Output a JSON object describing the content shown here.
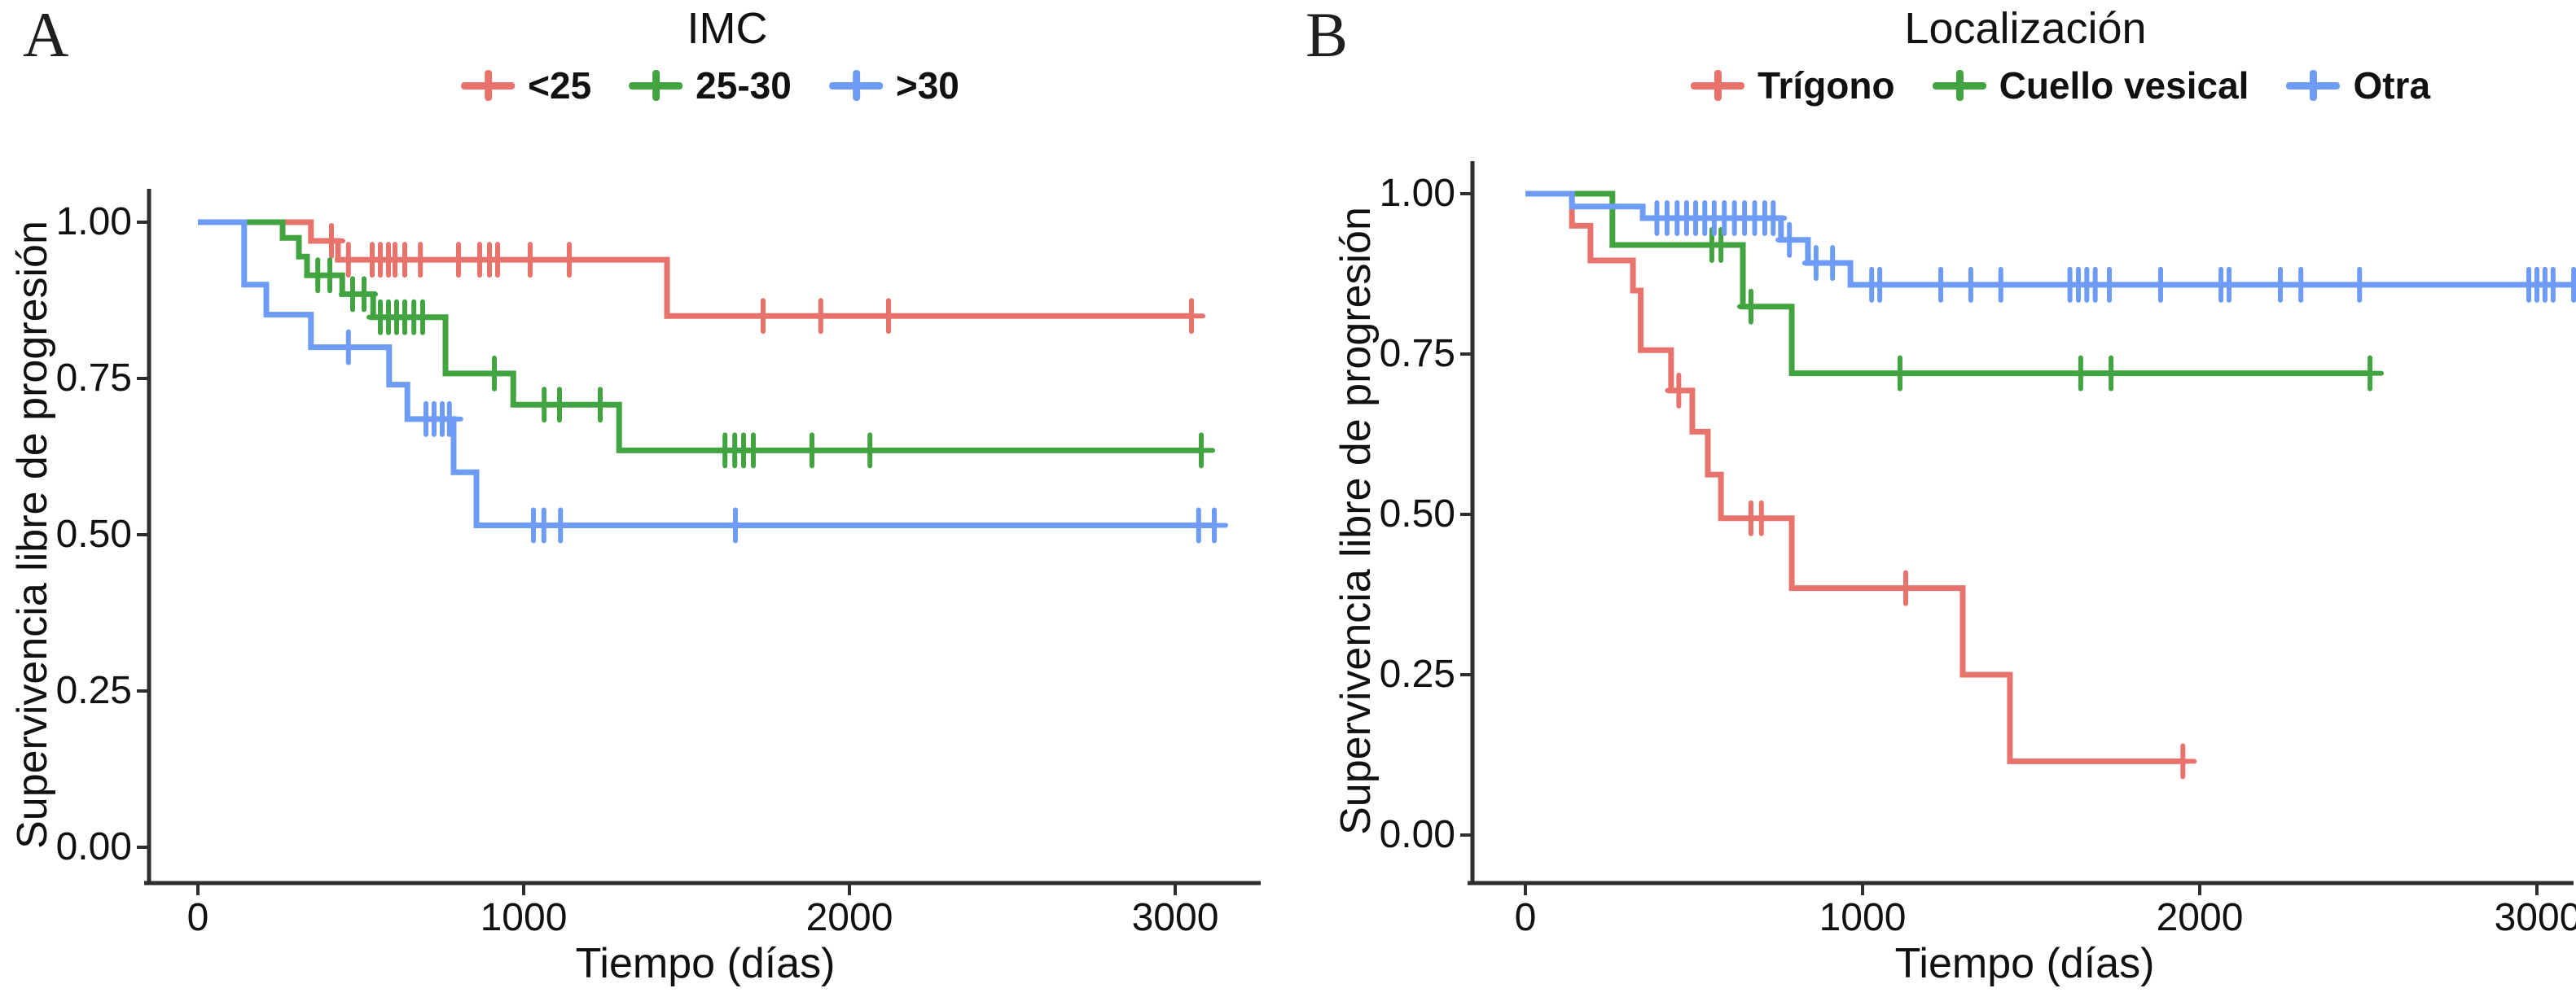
{
  "figure_type": "kaplan-meier-survival-curves",
  "colors": {
    "red": "#E8736C",
    "green": "#41A440",
    "blue": "#6E9CF4",
    "axis": "#2e2e2e"
  },
  "panels": [
    {
      "letter": "A",
      "title": "IMC",
      "xlabel": "Tiempo (días)",
      "ylabel": "Supervivencia libre de progresión",
      "yticks": [
        "1.00",
        "0.75",
        "0.50",
        "0.25",
        "0.00"
      ],
      "xticks": [
        "0",
        "1000",
        "2000",
        "3000"
      ],
      "legend": [
        {
          "label": "<25"
        },
        {
          "label": "25-30"
        },
        {
          "label": ">30"
        }
      ]
    },
    {
      "letter": "B",
      "title": "Localización",
      "xlabel": "Tiempo (días)",
      "ylabel": "Supervivencia libre de progresión",
      "yticks": [
        "1.00",
        "0.75",
        "0.50",
        "0.25",
        "0.00"
      ],
      "xticks": [
        "0",
        "1000",
        "2000",
        "3000"
      ],
      "legend": [
        {
          "label": "Trígono"
        },
        {
          "label": "Cuello vesical"
        },
        {
          "label": "Otra"
        }
      ]
    }
  ],
  "chart_data": [
    {
      "type": "line",
      "subtype": "kaplan-meier-step",
      "title": "IMC",
      "xlabel": "Tiempo (días)",
      "ylabel": "Supervivencia libre de progresión",
      "xlim": [
        0,
        3250
      ],
      "ylim": [
        0,
        1.0
      ],
      "xticks": [
        0,
        1000,
        2000,
        3000
      ],
      "yticks": [
        1.0,
        0.75,
        0.5,
        0.25,
        0.0
      ],
      "legend_position": "top",
      "grid": false,
      "series": [
        {
          "name": "<25",
          "color": "#E8736C",
          "steps": [
            [
              0,
              1.0
            ],
            [
              347,
              0.97
            ],
            [
              430,
              0.94
            ],
            [
              1440,
              0.85
            ]
          ],
          "end": 3050,
          "censors": [
            [
              410,
              0.97
            ],
            [
              462,
              0.94
            ],
            [
              535,
              0.94
            ],
            [
              560,
              0.94
            ],
            [
              585,
              0.94
            ],
            [
              605,
              0.94
            ],
            [
              635,
              0.94
            ],
            [
              683,
              0.94
            ],
            [
              800,
              0.94
            ],
            [
              865,
              0.94
            ],
            [
              895,
              0.94
            ],
            [
              920,
              0.94
            ],
            [
              1020,
              0.94
            ],
            [
              1140,
              0.94
            ],
            [
              1735,
              0.85
            ],
            [
              1912,
              0.85
            ],
            [
              2120,
              0.85
            ],
            [
              3050,
              0.85
            ]
          ]
        },
        {
          "name": "25-30",
          "color": "#41A440",
          "steps": [
            [
              0,
              1.0
            ],
            [
              260,
              0.975
            ],
            [
              310,
              0.945
            ],
            [
              335,
              0.915
            ],
            [
              443,
              0.885
            ],
            [
              538,
              0.848
            ],
            [
              760,
              0.758
            ],
            [
              968,
              0.708
            ],
            [
              1293,
              0.635
            ]
          ],
          "end": 3080,
          "censors": [
            [
              368,
              0.915
            ],
            [
              405,
              0.915
            ],
            [
              475,
              0.885
            ],
            [
              510,
              0.885
            ],
            [
              560,
              0.848
            ],
            [
              585,
              0.848
            ],
            [
              610,
              0.848
            ],
            [
              635,
              0.848
            ],
            [
              663,
              0.848
            ],
            [
              690,
              0.848
            ],
            [
              910,
              0.758
            ],
            [
              1063,
              0.708
            ],
            [
              1110,
              0.708
            ],
            [
              1235,
              0.708
            ],
            [
              1618,
              0.635
            ],
            [
              1648,
              0.635
            ],
            [
              1675,
              0.635
            ],
            [
              1705,
              0.635
            ],
            [
              1885,
              0.635
            ],
            [
              2063,
              0.635
            ],
            [
              3080,
              0.635
            ]
          ]
        },
        {
          "name": ">30",
          "color": "#6E9CF4",
          "steps": [
            [
              0,
              1.0
            ],
            [
              142,
              0.9
            ],
            [
              210,
              0.852
            ],
            [
              347,
              0.8
            ],
            [
              587,
              0.74
            ],
            [
              643,
              0.685
            ],
            [
              785,
              0.6
            ],
            [
              855,
              0.515
            ]
          ],
          "end": 3120,
          "censors": [
            [
              462,
              0.8
            ],
            [
              700,
              0.685
            ],
            [
              725,
              0.685
            ],
            [
              750,
              0.685
            ],
            [
              772,
              0.685
            ],
            [
              1030,
              0.515
            ],
            [
              1062,
              0.515
            ],
            [
              1113,
              0.515
            ],
            [
              1650,
              0.515
            ],
            [
              3072,
              0.515
            ],
            [
              3120,
              0.515
            ]
          ]
        }
      ]
    },
    {
      "type": "line",
      "subtype": "kaplan-meier-step",
      "title": "Localización",
      "xlabel": "Tiempo (días)",
      "ylabel": "Supervivencia libre de progresión",
      "xlim": [
        0,
        3120
      ],
      "ylim": [
        0,
        1.0
      ],
      "xticks": [
        0,
        1000,
        2000,
        3000
      ],
      "yticks": [
        1.0,
        0.75,
        0.5,
        0.25,
        0.0
      ],
      "legend_position": "top",
      "grid": false,
      "series": [
        {
          "name": "Trígono",
          "color": "#E8736C",
          "steps": [
            [
              0,
              1.0
            ],
            [
              138,
              0.95
            ],
            [
              193,
              0.896
            ],
            [
              319,
              0.849
            ],
            [
              342,
              0.756
            ],
            [
              432,
              0.693
            ],
            [
              495,
              0.629
            ],
            [
              541,
              0.562
            ],
            [
              580,
              0.494
            ],
            [
              790,
              0.385
            ],
            [
              1297,
              0.25
            ],
            [
              1437,
              0.115
            ]
          ],
          "end": 1950,
          "censors": [
            [
              455,
              0.693
            ],
            [
              669,
              0.494
            ],
            [
              700,
              0.494
            ],
            [
              1128,
              0.385
            ],
            [
              1950,
              0.115
            ]
          ]
        },
        {
          "name": "Cuello vesical",
          "color": "#41A440",
          "steps": [
            [
              0,
              1.0
            ],
            [
              258,
              0.92
            ],
            [
              645,
              0.824
            ],
            [
              790,
              0.72
            ]
          ],
          "end": 2505,
          "censors": [
            [
              553,
              0.92
            ],
            [
              580,
              0.92
            ],
            [
              669,
              0.824
            ],
            [
              1111,
              0.72
            ],
            [
              1647,
              0.72
            ],
            [
              1737,
              0.72
            ],
            [
              2505,
              0.72
            ]
          ]
        },
        {
          "name": "Otra",
          "color": "#6E9CF4",
          "steps": [
            [
              0,
              1.0
            ],
            [
              138,
              0.98
            ],
            [
              348,
              0.962
            ],
            [
              758,
              0.928
            ],
            [
              838,
              0.892
            ],
            [
              964,
              0.858
            ]
          ],
          "end": 3109,
          "censors": [
            [
              390,
              0.962
            ],
            [
              420,
              0.962
            ],
            [
              450,
              0.962
            ],
            [
              478,
              0.962
            ],
            [
              505,
              0.962
            ],
            [
              532,
              0.962
            ],
            [
              560,
              0.962
            ],
            [
              590,
              0.962
            ],
            [
              620,
              0.962
            ],
            [
              650,
              0.962
            ],
            [
              680,
              0.962
            ],
            [
              710,
              0.962
            ],
            [
              735,
              0.962
            ],
            [
              783,
              0.928
            ],
            [
              862,
              0.892
            ],
            [
              911,
              0.892
            ],
            [
              1027,
              0.858
            ],
            [
              1051,
              0.858
            ],
            [
              1232,
              0.858
            ],
            [
              1321,
              0.858
            ],
            [
              1410,
              0.858
            ],
            [
              1615,
              0.858
            ],
            [
              1640,
              0.858
            ],
            [
              1665,
              0.858
            ],
            [
              1690,
              0.858
            ],
            [
              1732,
              0.858
            ],
            [
              1884,
              0.858
            ],
            [
              2063,
              0.858
            ],
            [
              2087,
              0.858
            ],
            [
              2239,
              0.858
            ],
            [
              2300,
              0.858
            ],
            [
              2474,
              0.858
            ],
            [
              2976,
              0.858
            ],
            [
              3000,
              0.858
            ],
            [
              3024,
              0.858
            ],
            [
              3048,
              0.858
            ],
            [
              3109,
              0.858
            ]
          ]
        }
      ]
    }
  ]
}
